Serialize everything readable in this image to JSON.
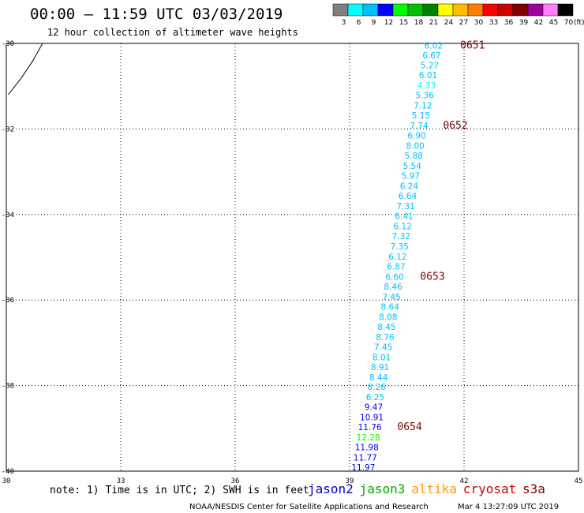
{
  "header": {
    "title": "00:00 – 11:59 UTC 03/03/2019",
    "subtitle": "12 hour collection of altimeter wave heights"
  },
  "color_scale": {
    "colors": [
      "#808080",
      "#00ffff",
      "#00bfff",
      "#0000ff",
      "#00ff00",
      "#00c000",
      "#008000",
      "#ffff00",
      "#ffbf00",
      "#ff8000",
      "#ff0000",
      "#cc0000",
      "#800000",
      "#a000a0",
      "#ff80ff",
      "#000000"
    ],
    "labels": [
      "3",
      "6",
      "9",
      "12",
      "15",
      "18",
      "21",
      "24",
      "27",
      "30",
      "33",
      "36",
      "39",
      "42",
      "45",
      "70"
    ],
    "unit": "(ft)"
  },
  "chart_data": {
    "type": "scatter",
    "title": "00:00 – 11:59 UTC 03/03/2019",
    "subtitle": "12 hour collection of altimeter wave heights",
    "xlim": [
      30,
      45
    ],
    "ylim": [
      -40,
      -30
    ],
    "x_ticks": [
      "30",
      "33",
      "36",
      "39",
      "42",
      "45"
    ],
    "y_ticks": [
      "-30",
      "-32",
      "-34",
      "-36",
      "-38",
      "-40"
    ],
    "grid": true,
    "coast_points": [
      [
        30.05,
        -31.2
      ],
      [
        30.4,
        -30.8
      ],
      [
        30.7,
        -30.4
      ],
      [
        30.95,
        -30.0
      ]
    ],
    "points": [
      {
        "lon": 41.2,
        "lat": -30.05,
        "v": "6.02",
        "c": "#00bfff"
      },
      {
        "lon": 41.15,
        "lat": -30.28,
        "v": "6.67",
        "c": "#00bfff"
      },
      {
        "lon": 41.1,
        "lat": -30.51,
        "v": "5.27",
        "c": "#00bfff"
      },
      {
        "lon": 41.06,
        "lat": -30.74,
        "v": "6.01",
        "c": "#00bfff"
      },
      {
        "lon": 41.02,
        "lat": -30.98,
        "v": "4.33",
        "c": "#00ffff"
      },
      {
        "lon": 40.97,
        "lat": -31.21,
        "v": "5.36",
        "c": "#00bfff"
      },
      {
        "lon": 40.92,
        "lat": -31.45,
        "v": "7.12",
        "c": "#00bfff"
      },
      {
        "lon": 40.87,
        "lat": -31.68,
        "v": "5.15",
        "c": "#00bfff"
      },
      {
        "lon": 40.82,
        "lat": -31.92,
        "v": "7.74",
        "c": "#00bfff"
      },
      {
        "lon": 40.76,
        "lat": -32.15,
        "v": "6.90",
        "c": "#00bfff"
      },
      {
        "lon": 40.72,
        "lat": -32.39,
        "v": "8.00",
        "c": "#00bfff"
      },
      {
        "lon": 40.68,
        "lat": -32.62,
        "v": "5.88",
        "c": "#00bfff"
      },
      {
        "lon": 40.64,
        "lat": -32.86,
        "v": "5.54",
        "c": "#00bfff"
      },
      {
        "lon": 40.6,
        "lat": -33.09,
        "v": "5.97",
        "c": "#00bfff"
      },
      {
        "lon": 40.56,
        "lat": -33.33,
        "v": "6.24",
        "c": "#00bfff"
      },
      {
        "lon": 40.52,
        "lat": -33.56,
        "v": "6.64",
        "c": "#00bfff"
      },
      {
        "lon": 40.47,
        "lat": -33.8,
        "v": "7.31",
        "c": "#00bfff"
      },
      {
        "lon": 40.43,
        "lat": -34.03,
        "v": "6.41",
        "c": "#00bfff"
      },
      {
        "lon": 40.39,
        "lat": -34.27,
        "v": "6.12",
        "c": "#00bfff"
      },
      {
        "lon": 40.35,
        "lat": -34.5,
        "v": "7.32",
        "c": "#00bfff"
      },
      {
        "lon": 40.31,
        "lat": -34.74,
        "v": "7.35",
        "c": "#00bfff"
      },
      {
        "lon": 40.26,
        "lat": -34.98,
        "v": "6.12",
        "c": "#00bfff"
      },
      {
        "lon": 40.22,
        "lat": -35.21,
        "v": "6.87",
        "c": "#00bfff"
      },
      {
        "lon": 40.18,
        "lat": -35.45,
        "v": "6.60",
        "c": "#00bfff"
      },
      {
        "lon": 40.14,
        "lat": -35.68,
        "v": "8.46",
        "c": "#00bfff"
      },
      {
        "lon": 40.1,
        "lat": -35.92,
        "v": "7.45",
        "c": "#00bfff"
      },
      {
        "lon": 40.06,
        "lat": -36.15,
        "v": "8.64",
        "c": "#00bfff"
      },
      {
        "lon": 40.01,
        "lat": -36.39,
        "v": "8.08",
        "c": "#00bfff"
      },
      {
        "lon": 39.97,
        "lat": -36.62,
        "v": "8.45",
        "c": "#00bfff"
      },
      {
        "lon": 39.93,
        "lat": -36.86,
        "v": "8.76",
        "c": "#00bfff"
      },
      {
        "lon": 39.88,
        "lat": -37.09,
        "v": "7.45",
        "c": "#00bfff"
      },
      {
        "lon": 39.84,
        "lat": -37.33,
        "v": "8.01",
        "c": "#00bfff"
      },
      {
        "lon": 39.8,
        "lat": -37.56,
        "v": "8.91",
        "c": "#00bfff"
      },
      {
        "lon": 39.76,
        "lat": -37.8,
        "v": "8.44",
        "c": "#00bfff"
      },
      {
        "lon": 39.71,
        "lat": -38.03,
        "v": "8.26",
        "c": "#00bfff"
      },
      {
        "lon": 39.67,
        "lat": -38.27,
        "v": "6.25",
        "c": "#00bfff"
      },
      {
        "lon": 39.63,
        "lat": -38.5,
        "v": "9.47",
        "c": "#0000ff"
      },
      {
        "lon": 39.58,
        "lat": -38.74,
        "v": "10.91",
        "c": "#0000ff"
      },
      {
        "lon": 39.53,
        "lat": -38.97,
        "v": "11.76",
        "c": "#0000ff"
      },
      {
        "lon": 39.49,
        "lat": -39.21,
        "v": "12.28",
        "c": "#00ff00"
      },
      {
        "lon": 39.45,
        "lat": -39.44,
        "v": "11.98",
        "c": "#0000ff"
      },
      {
        "lon": 39.41,
        "lat": -39.68,
        "v": "11.77",
        "c": "#0000ff"
      },
      {
        "lon": 39.36,
        "lat": -39.91,
        "v": "11.97",
        "c": "#0000ff"
      }
    ],
    "pass_labels": [
      {
        "lon": 41.9,
        "lat": -30.05,
        "text": "0651"
      },
      {
        "lon": 41.45,
        "lat": -31.92,
        "text": "0652"
      },
      {
        "lon": 40.85,
        "lat": -35.45,
        "text": "0653"
      },
      {
        "lon": 40.25,
        "lat": -38.97,
        "text": "0654"
      }
    ]
  },
  "footer": {
    "note": "note: 1) Time is in UTC; 2) SWH is in feet",
    "satellites": [
      {
        "name": "jason2",
        "color": "#0000cc"
      },
      {
        "name": "jason3",
        "color": "#00aa00"
      },
      {
        "name": "altika",
        "color": "#ff9900"
      },
      {
        "name": "cryosat",
        "color": "#cc0000"
      },
      {
        "name": "s3a",
        "color": "#800000"
      }
    ],
    "credit": "NOAA/NESDIS Center for Satellite Applications and Research",
    "timestamp": "Mar  4 13:27:09 UTC 2019"
  }
}
